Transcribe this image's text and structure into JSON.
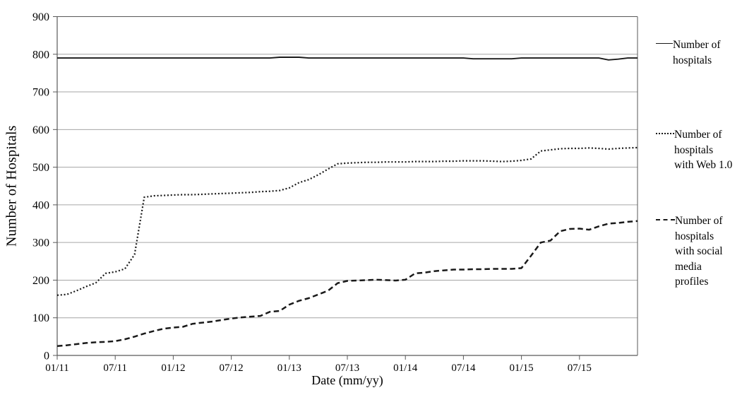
{
  "chart_data": {
    "type": "line",
    "title": "",
    "xlabel": "Date (mm/yy)",
    "ylabel": "Number of Hospitals",
    "ylim": [
      0,
      900
    ],
    "y_ticks": [
      0,
      100,
      200,
      300,
      400,
      500,
      600,
      700,
      800,
      900
    ],
    "x_tick_labels": [
      "01/11",
      "07/11",
      "01/12",
      "07/12",
      "01/13",
      "07/13",
      "01/14",
      "07/14",
      "01/15",
      "07/15"
    ],
    "x_tick_month_index": [
      0,
      6,
      12,
      18,
      24,
      30,
      36,
      42,
      48,
      54
    ],
    "grid": "horizontal",
    "legend_position": "right",
    "months": [
      "01/11",
      "02/11",
      "03/11",
      "04/11",
      "05/11",
      "06/11",
      "07/11",
      "08/11",
      "09/11",
      "10/11",
      "11/11",
      "12/11",
      "01/12",
      "02/12",
      "03/12",
      "04/12",
      "05/12",
      "06/12",
      "07/12",
      "08/12",
      "09/12",
      "10/12",
      "11/12",
      "12/12",
      "01/13",
      "02/13",
      "03/13",
      "04/13",
      "05/13",
      "06/13",
      "07/13",
      "08/13",
      "09/13",
      "10/13",
      "11/13",
      "12/13",
      "01/14",
      "02/14",
      "03/14",
      "04/14",
      "05/14",
      "06/14",
      "07/14",
      "08/14",
      "09/14",
      "10/14",
      "11/14",
      "12/14",
      "01/15",
      "02/15",
      "03/15",
      "04/15",
      "05/15",
      "06/15",
      "07/15",
      "08/15",
      "09/15",
      "10/15",
      "11/15",
      "12/15",
      "01/16"
    ],
    "series": [
      {
        "name": "Number of hospitals",
        "line_style": "solid",
        "color": "#1a1a1a",
        "values": [
          790,
          790,
          790,
          790,
          790,
          790,
          790,
          790,
          790,
          790,
          790,
          790,
          790,
          790,
          790,
          790,
          790,
          790,
          790,
          790,
          790,
          790,
          790,
          792,
          792,
          792,
          790,
          790,
          790,
          790,
          790,
          790,
          790,
          790,
          790,
          790,
          790,
          790,
          790,
          790,
          790,
          790,
          790,
          788,
          788,
          788,
          788,
          788,
          790,
          790,
          790,
          790,
          790,
          790,
          790,
          790,
          790,
          785,
          787,
          790,
          790
        ]
      },
      {
        "name": "Number of hospitals with Web 1.0",
        "line_style": "dotted",
        "color": "#1a1a1a",
        "values": [
          160,
          162,
          172,
          183,
          193,
          218,
          222,
          230,
          268,
          420,
          424,
          425,
          426,
          427,
          427,
          428,
          429,
          430,
          431,
          432,
          433,
          435,
          436,
          438,
          445,
          459,
          467,
          480,
          495,
          509,
          511,
          512,
          513,
          513,
          514,
          514,
          514,
          515,
          515,
          515,
          516,
          516,
          517,
          517,
          517,
          516,
          515,
          516,
          518,
          522,
          543,
          546,
          549,
          550,
          550,
          551,
          550,
          548,
          550,
          551,
          552
        ]
      },
      {
        "name": "Number of hospitals with social media profiles",
        "line_style": "dashed",
        "color": "#1a1a1a",
        "values": [
          25,
          27,
          30,
          33,
          35,
          36,
          38,
          43,
          50,
          58,
          65,
          71,
          74,
          76,
          84,
          87,
          90,
          94,
          98,
          101,
          103,
          105,
          116,
          118,
          135,
          145,
          152,
          162,
          172,
          192,
          198,
          199,
          200,
          201,
          200,
          199,
          201,
          218,
          220,
          224,
          226,
          228,
          228,
          229,
          229,
          230,
          230,
          230,
          232,
          265,
          300,
          305,
          330,
          336,
          337,
          334,
          343,
          350,
          352,
          355,
          357
        ]
      }
    ]
  },
  "colors": {
    "background": "#ffffff",
    "gridline": "#a6a6a6",
    "axis": "#595959",
    "series": "#1a1a1a"
  }
}
